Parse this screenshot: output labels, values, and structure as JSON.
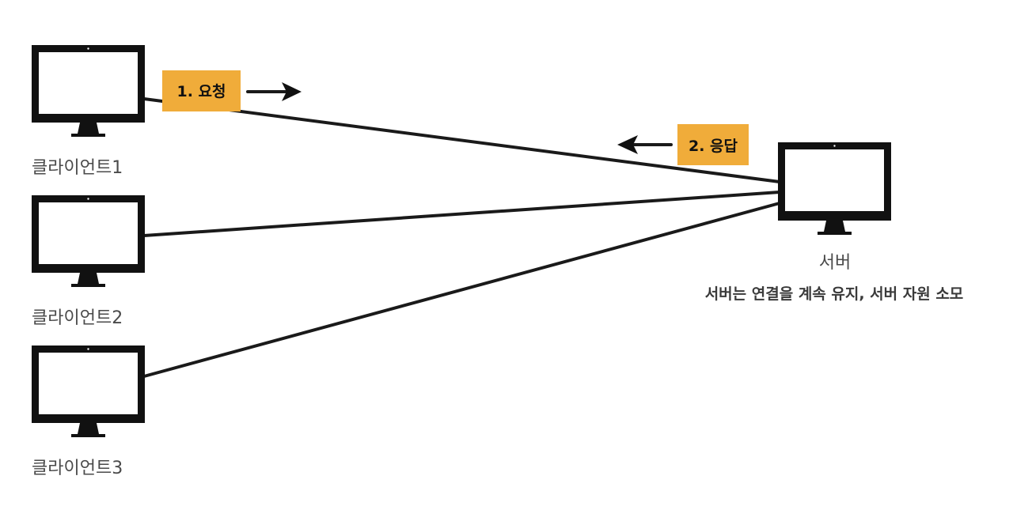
{
  "clients": [
    {
      "label": "클라이언트1"
    },
    {
      "label": "클라이언트2"
    },
    {
      "label": "클라이언트3"
    }
  ],
  "server": {
    "label": "서버",
    "note": "서버는 연결을 계속 유지, 서버 자원 소모"
  },
  "messages": {
    "request": "1. 요청",
    "response": "2. 응답"
  },
  "colors": {
    "tag": "#f0ac3a",
    "ink": "#111111",
    "label": "#4a4a4a"
  },
  "icons": {
    "client": "monitor-icon",
    "server": "monitor-icon",
    "request_arrow": "arrow-right-icon",
    "response_arrow": "arrow-left-icon"
  }
}
